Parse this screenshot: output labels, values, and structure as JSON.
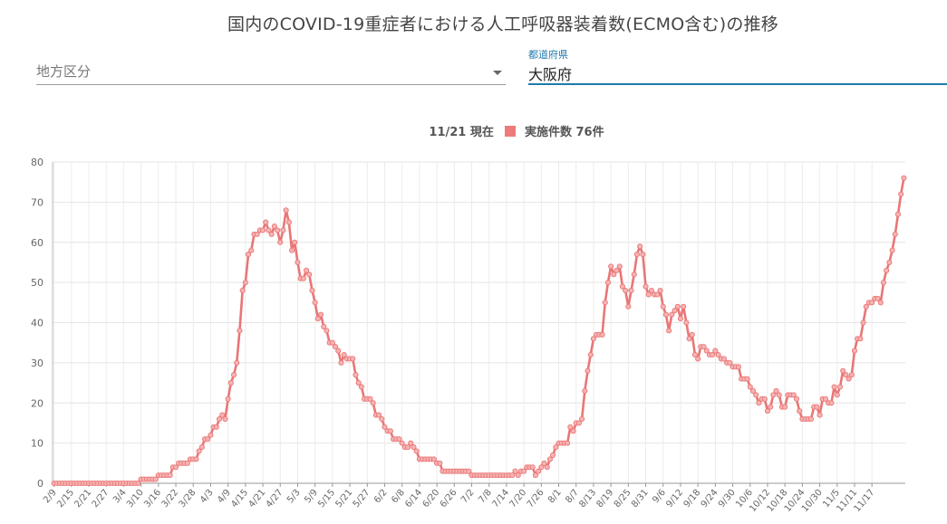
{
  "page": {
    "title": "国内のCOVID-19重症者における人工呼吸器装着数(ECMO含む)の推移"
  },
  "filters": {
    "region_placeholder": "地方区分",
    "prefecture_label": "都道府県",
    "prefecture_value": "大阪府"
  },
  "legend": {
    "date_text": "11/21 現在",
    "series_text": "実施件数 76件"
  },
  "colors": {
    "series": "#e97676",
    "accent": "#1f7bab"
  },
  "chart_data": {
    "type": "line",
    "title": "",
    "xlabel": "",
    "ylabel": "",
    "ylim": [
      0,
      80
    ],
    "yticks": [
      0,
      10,
      20,
      30,
      40,
      50,
      60,
      70,
      80
    ],
    "grid": true,
    "x_start": "2/9",
    "x_end": "11/21",
    "xtick_labels": [
      "2/9",
      "2/15",
      "2/21",
      "2/27",
      "3/4",
      "3/10",
      "3/16",
      "3/22",
      "3/28",
      "4/3",
      "4/9",
      "4/15",
      "4/21",
      "4/27",
      "5/3",
      "5/9",
      "5/15",
      "5/21",
      "5/27",
      "6/2",
      "6/8",
      "6/14",
      "6/20",
      "6/26",
      "7/2",
      "7/8",
      "7/14",
      "7/20",
      "7/26",
      "8/1",
      "8/7",
      "8/13",
      "8/19",
      "8/25",
      "8/31",
      "9/6",
      "9/12",
      "9/18",
      "9/24",
      "9/30",
      "10/6",
      "10/12",
      "10/18",
      "10/24",
      "10/30",
      "11/5",
      "11/11",
      "11/17"
    ],
    "series": [
      {
        "values": [
          0,
          0,
          0,
          0,
          0,
          0,
          0,
          0,
          0,
          0,
          0,
          0,
          0,
          0,
          0,
          0,
          0,
          0,
          0,
          0,
          0,
          0,
          0,
          0,
          0,
          0,
          0,
          0,
          0,
          0,
          1,
          1,
          1,
          1,
          1,
          1,
          2,
          2,
          2,
          2,
          2,
          4,
          4,
          5,
          5,
          5,
          5,
          6,
          6,
          6,
          8,
          9,
          11,
          11,
          12,
          14,
          14,
          16,
          17,
          16,
          21,
          25,
          27,
          30,
          38,
          48,
          50,
          57,
          58,
          62,
          62,
          63,
          63,
          65,
          63,
          62,
          64,
          63,
          60,
          63,
          68,
          65,
          58,
          60,
          55,
          51,
          51,
          53,
          52,
          48,
          45,
          41,
          42,
          39,
          38,
          35,
          35,
          34,
          33,
          30,
          32,
          31,
          31,
          31,
          27,
          25,
          24,
          21,
          21,
          21,
          20,
          17,
          17,
          16,
          14,
          13,
          13,
          11,
          11,
          11,
          10,
          9,
          9,
          10,
          9,
          8,
          6,
          6,
          6,
          6,
          6,
          6,
          5,
          5,
          3,
          3,
          3,
          3,
          3,
          3,
          3,
          3,
          3,
          3,
          2,
          2,
          2,
          2,
          2,
          2,
          2,
          2,
          2,
          2,
          2,
          2,
          2,
          2,
          2,
          3,
          2,
          3,
          3,
          4,
          4,
          4,
          2,
          3,
          4,
          5,
          4,
          6,
          7,
          9,
          10,
          10,
          10,
          10,
          14,
          13,
          15,
          15,
          16,
          23,
          28,
          32,
          36,
          37,
          37,
          37,
          45,
          50,
          54,
          52,
          53,
          54,
          49,
          48,
          44,
          48,
          52,
          57,
          59,
          57,
          49,
          47,
          48,
          47,
          47,
          48,
          44,
          42,
          38,
          42,
          43,
          44,
          41,
          44,
          40,
          36,
          37,
          32,
          31,
          34,
          34,
          33,
          32,
          32,
          33,
          32,
          31,
          31,
          30,
          30,
          29,
          29,
          29,
          26,
          26,
          26,
          24,
          23,
          22,
          20,
          21,
          21,
          18,
          19,
          22,
          23,
          22,
          19,
          19,
          22,
          22,
          22,
          21,
          18,
          16,
          16,
          16,
          16,
          19,
          19,
          17,
          21,
          21,
          20,
          20,
          24,
          22,
          24,
          28,
          27,
          26,
          27,
          33,
          36,
          36,
          40,
          44,
          45,
          45,
          46,
          46,
          45,
          50,
          53,
          55,
          58,
          62,
          67,
          72,
          76
        ]
      }
    ]
  }
}
